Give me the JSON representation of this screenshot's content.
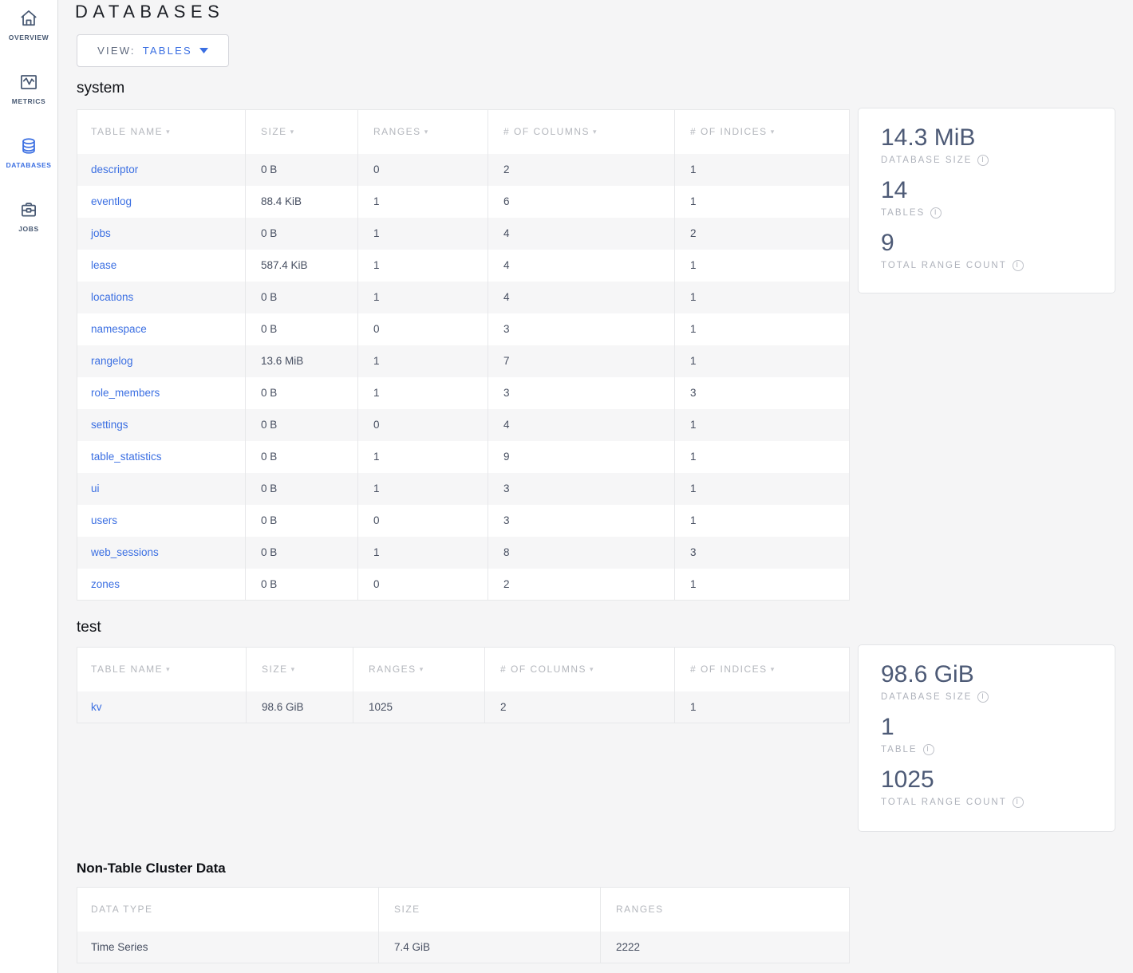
{
  "sidebar": {
    "items": [
      {
        "label": "OVERVIEW",
        "icon": "home-icon",
        "active": false
      },
      {
        "label": "METRICS",
        "icon": "metrics-icon",
        "active": false
      },
      {
        "label": "DATABASES",
        "icon": "database-icon",
        "active": true
      },
      {
        "label": "JOBS",
        "icon": "briefcase-icon",
        "active": false
      }
    ]
  },
  "header": {
    "title": "DATABASES"
  },
  "view_dropdown": {
    "prefix": "VIEW:",
    "selected": "TABLES"
  },
  "databases": [
    {
      "name": "system",
      "columns": [
        "TABLE NAME",
        "SIZE",
        "RANGES",
        "# OF COLUMNS",
        "# OF INDICES"
      ],
      "rows": [
        [
          "descriptor",
          "0 B",
          "0",
          "2",
          "1"
        ],
        [
          "eventlog",
          "88.4 KiB",
          "1",
          "6",
          "1"
        ],
        [
          "jobs",
          "0 B",
          "1",
          "4",
          "2"
        ],
        [
          "lease",
          "587.4 KiB",
          "1",
          "4",
          "1"
        ],
        [
          "locations",
          "0 B",
          "1",
          "4",
          "1"
        ],
        [
          "namespace",
          "0 B",
          "0",
          "3",
          "1"
        ],
        [
          "rangelog",
          "13.6 MiB",
          "1",
          "7",
          "1"
        ],
        [
          "role_members",
          "0 B",
          "1",
          "3",
          "3"
        ],
        [
          "settings",
          "0 B",
          "0",
          "4",
          "1"
        ],
        [
          "table_statistics",
          "0 B",
          "1",
          "9",
          "1"
        ],
        [
          "ui",
          "0 B",
          "1",
          "3",
          "1"
        ],
        [
          "users",
          "0 B",
          "0",
          "3",
          "1"
        ],
        [
          "web_sessions",
          "0 B",
          "1",
          "8",
          "3"
        ],
        [
          "zones",
          "0 B",
          "0",
          "2",
          "1"
        ]
      ],
      "summary": [
        {
          "value": "14.3 MiB",
          "label": "DATABASE SIZE"
        },
        {
          "value": "14",
          "label": "TABLES"
        },
        {
          "value": "9",
          "label": "TOTAL RANGE COUNT"
        }
      ]
    },
    {
      "name": "test",
      "columns": [
        "TABLE NAME",
        "SIZE",
        "RANGES",
        "# OF COLUMNS",
        "# OF INDICES"
      ],
      "rows": [
        [
          "kv",
          "98.6 GiB",
          "1025",
          "2",
          "1"
        ]
      ],
      "summary": [
        {
          "value": "98.6 GiB",
          "label": "DATABASE SIZE"
        },
        {
          "value": "1",
          "label": "TABLE"
        },
        {
          "value": "1025",
          "label": "TOTAL RANGE COUNT"
        }
      ]
    }
  ],
  "non_table": {
    "title": "Non-Table Cluster Data",
    "columns": [
      "DATA TYPE",
      "SIZE",
      "RANGES"
    ],
    "rows": [
      [
        "Time Series",
        "7.4 GiB",
        "2222"
      ]
    ]
  },
  "icons": {
    "info": "i",
    "sort_caret": "▾"
  },
  "colors": {
    "accent_blue": "#3b6fe2",
    "nav_slate": "#475872",
    "page_bg": "#f5f5f6",
    "stat_value": "#4d5a76"
  }
}
